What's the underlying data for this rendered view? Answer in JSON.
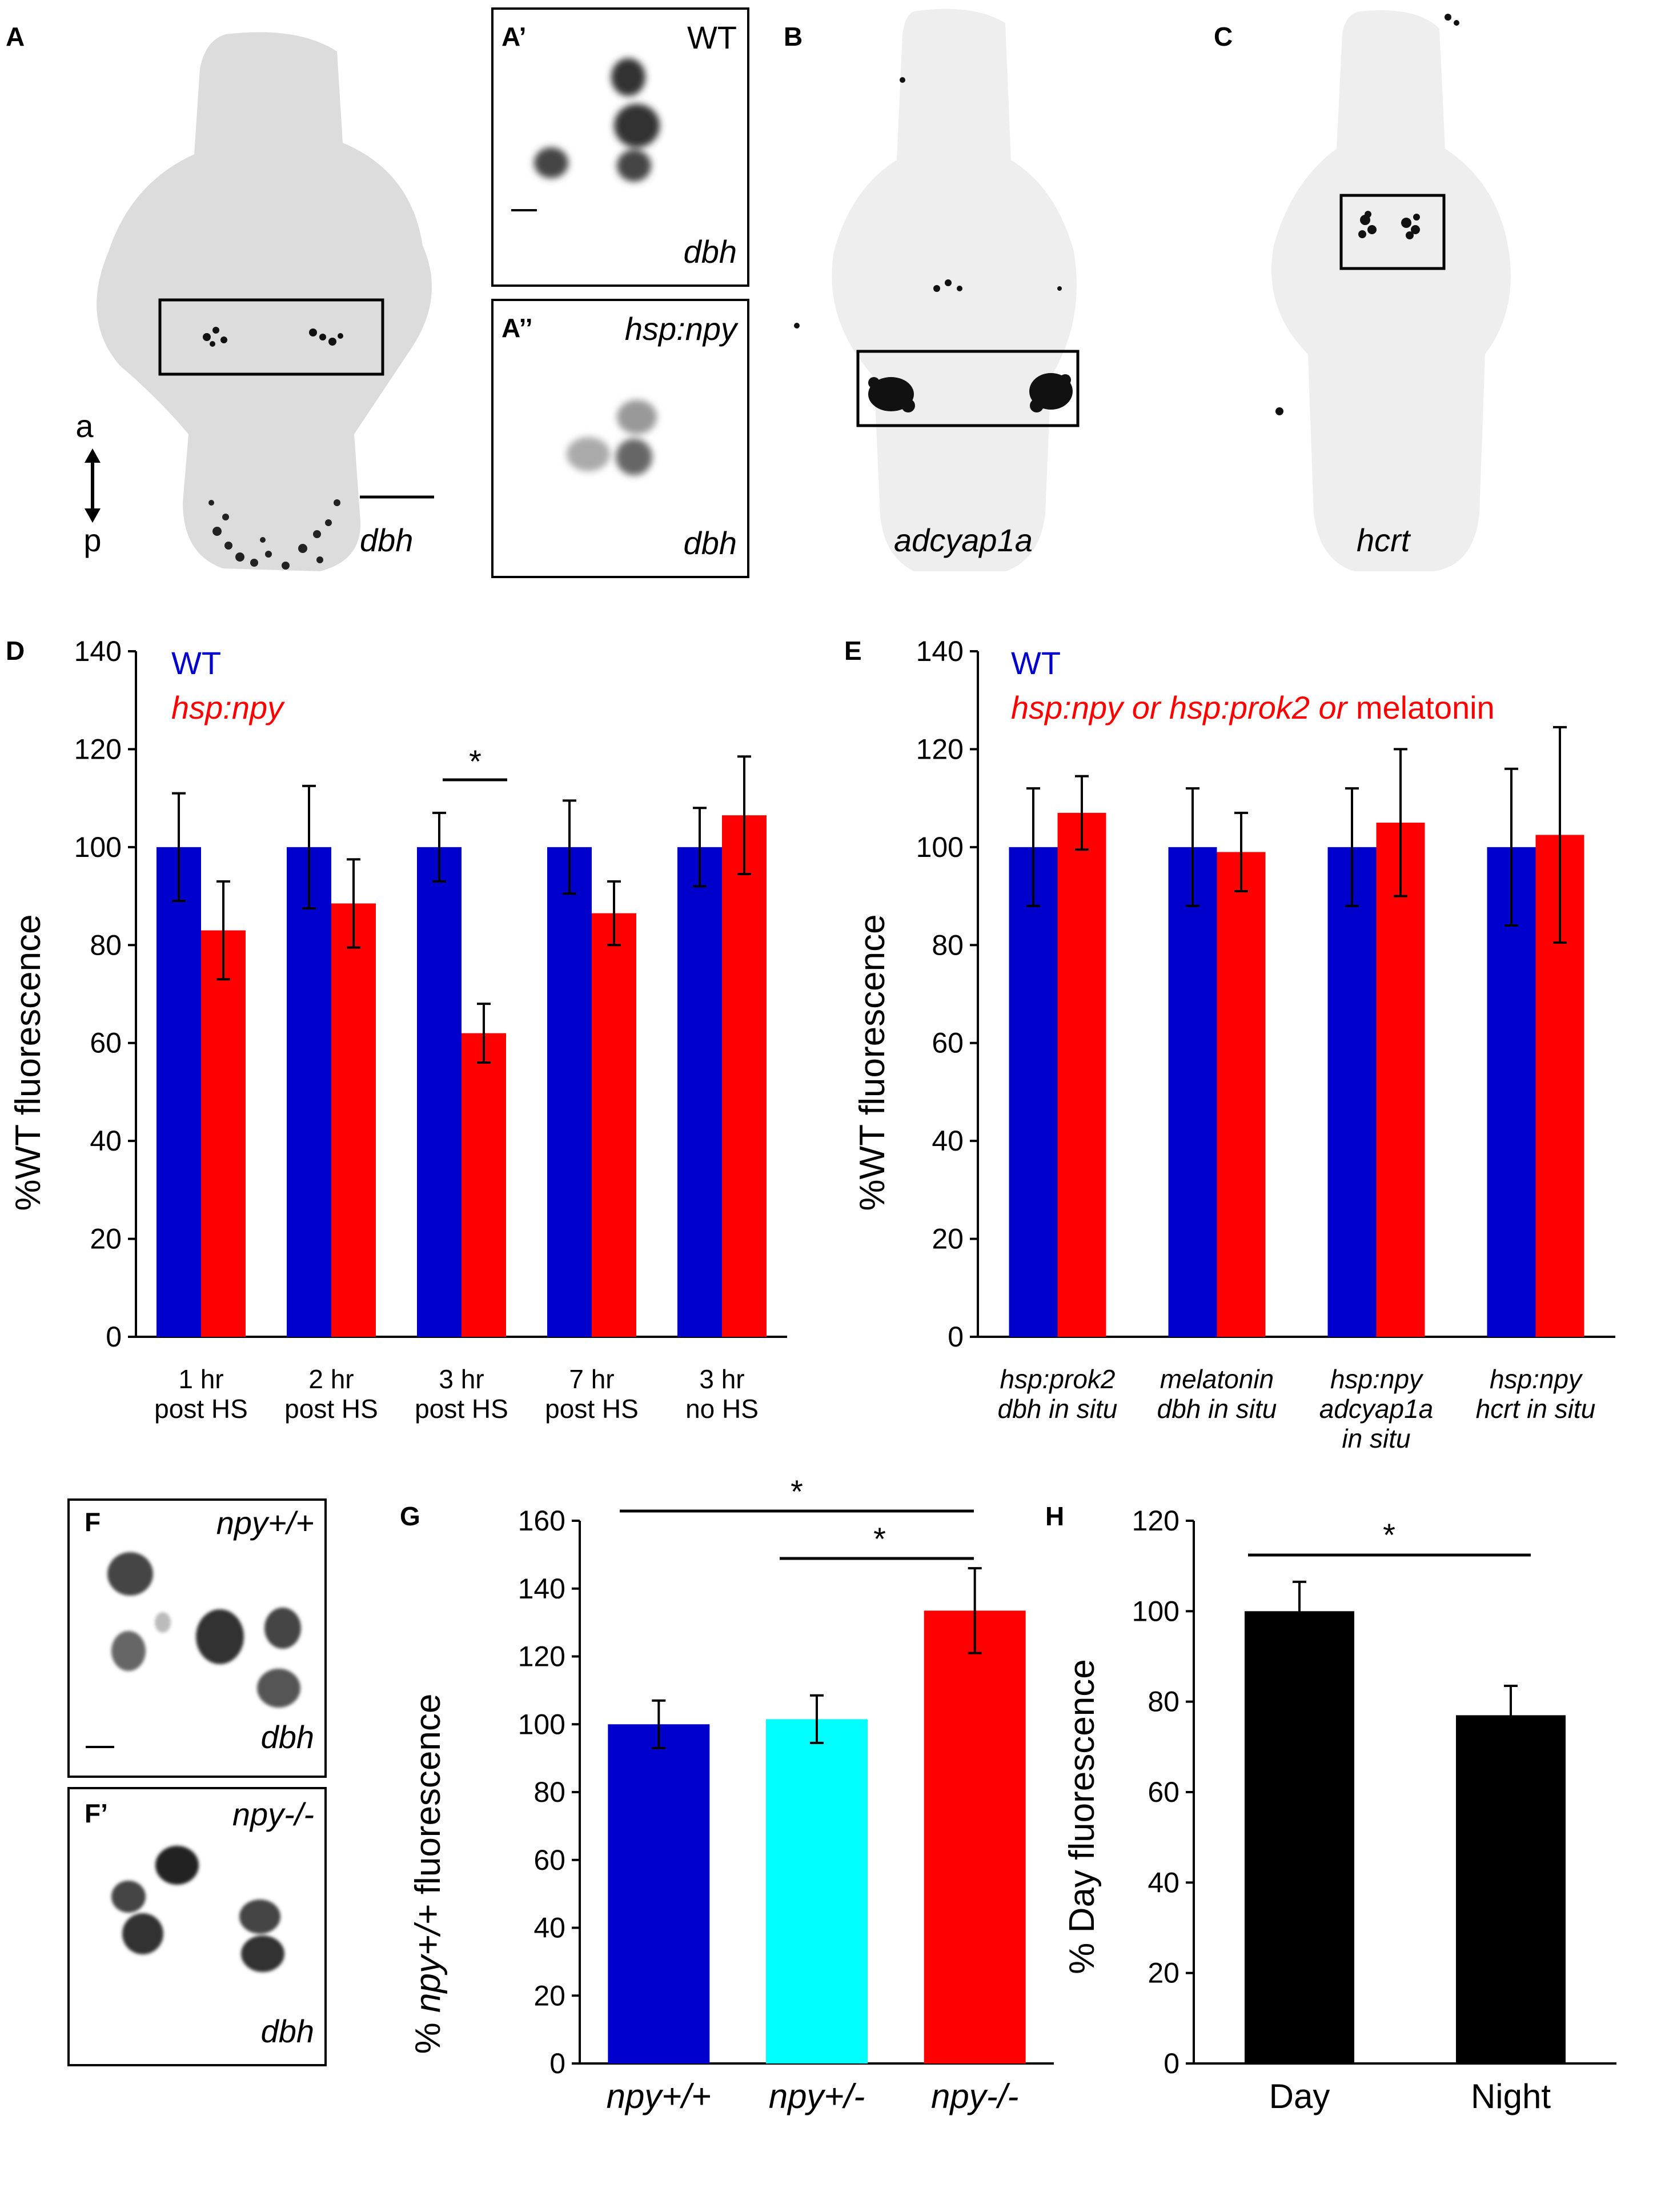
{
  "colors": {
    "wt": "#0000cc",
    "mutant": "#ff0000",
    "het": "#00ffff",
    "black": "#000000",
    "tissue": "#dcdcdc"
  },
  "images": {
    "A": {
      "label": "A",
      "marker": "dbh",
      "axis_a": "a",
      "axis_p": "p"
    },
    "A1": {
      "label": "A’",
      "genotype": "WT",
      "marker": "dbh"
    },
    "A2": {
      "label": "A’’",
      "genotype": "hsp:npy",
      "marker": "dbh"
    },
    "B": {
      "label": "B",
      "marker": "adcyap1a"
    },
    "C": {
      "label": "C",
      "marker": "hcrt"
    },
    "F": {
      "label": "F",
      "genotype": "npy+/+",
      "marker": "dbh"
    },
    "F1": {
      "label": "F’",
      "genotype": "npy-/-",
      "marker": "dbh"
    }
  },
  "chart_data": [
    {
      "panel": "D",
      "type": "bar",
      "ylabel": "%WT fluorescence",
      "ylim": [
        0,
        140
      ],
      "yticks": [
        0,
        20,
        40,
        60,
        80,
        100,
        120,
        140
      ],
      "categories": [
        [
          "1 hr",
          "post HS"
        ],
        [
          "2 hr",
          "post HS"
        ],
        [
          "3 hr",
          "post HS"
        ],
        [
          "7 hr",
          "post HS"
        ],
        [
          "3 hr",
          "no HS"
        ]
      ],
      "series": [
        {
          "name": "WT",
          "values": [
            100,
            100,
            100,
            100,
            100
          ],
          "errors": [
            11,
            12.5,
            7,
            9.5,
            8
          ]
        },
        {
          "name": "hsp:npy",
          "values": [
            83,
            88.5,
            62,
            86.5,
            106.5
          ],
          "errors": [
            10,
            9,
            6,
            6.5,
            12
          ]
        }
      ],
      "significance": [
        {
          "category": 2,
          "label": "*"
        }
      ]
    },
    {
      "panel": "E",
      "type": "bar",
      "ylabel": "%WT fluorescence",
      "ylim": [
        0,
        140
      ],
      "yticks": [
        0,
        20,
        40,
        60,
        80,
        100,
        120,
        140
      ],
      "categories": [
        [
          "hsp:prok2",
          "dbh in situ"
        ],
        [
          "melatonin",
          "dbh in situ"
        ],
        [
          "hsp:npy",
          "adcyap1a",
          "in situ"
        ],
        [
          "hsp:npy",
          "hcrt in situ"
        ]
      ],
      "legend_wt": "WT",
      "legend_mut": {
        "a": "hsp:npy or hsp:prok2 or",
        "b": " melatonin"
      },
      "series": [
        {
          "name": "WT",
          "values": [
            100,
            100,
            100,
            100
          ],
          "errors": [
            12,
            12,
            12,
            16
          ]
        },
        {
          "name": "hsp:npy or hsp:prok2 or melatonin",
          "values": [
            107,
            99,
            105,
            102.5
          ],
          "errors": [
            7.5,
            8,
            15,
            22
          ]
        }
      ]
    },
    {
      "panel": "G",
      "type": "bar",
      "ylabel_pre": "% ",
      "ylabel_it": "npy+/+",
      "ylabel_post": " fluorescence",
      "ylim": [
        0,
        160
      ],
      "yticks": [
        0,
        20,
        40,
        60,
        80,
        100,
        120,
        140,
        160
      ],
      "categories": [
        "npy+/+",
        "npy+/-",
        "npy-/-"
      ],
      "values": [
        100,
        101.5,
        133.5
      ],
      "errors": [
        7,
        7,
        12.5
      ],
      "significance": [
        {
          "from": 0,
          "to": 2,
          "label": "*"
        },
        {
          "from": 1,
          "to": 2,
          "label": "*"
        }
      ]
    },
    {
      "panel": "H",
      "type": "bar",
      "ylabel": "% Day fluorescence",
      "ylim": [
        0,
        120
      ],
      "yticks": [
        0,
        20,
        40,
        60,
        80,
        100,
        120
      ],
      "categories": [
        "Day",
        "Night"
      ],
      "values": [
        100,
        77
      ],
      "errors": [
        6.5,
        6.5
      ],
      "significance": [
        {
          "from": 0,
          "to": 1,
          "label": "*"
        }
      ]
    }
  ]
}
